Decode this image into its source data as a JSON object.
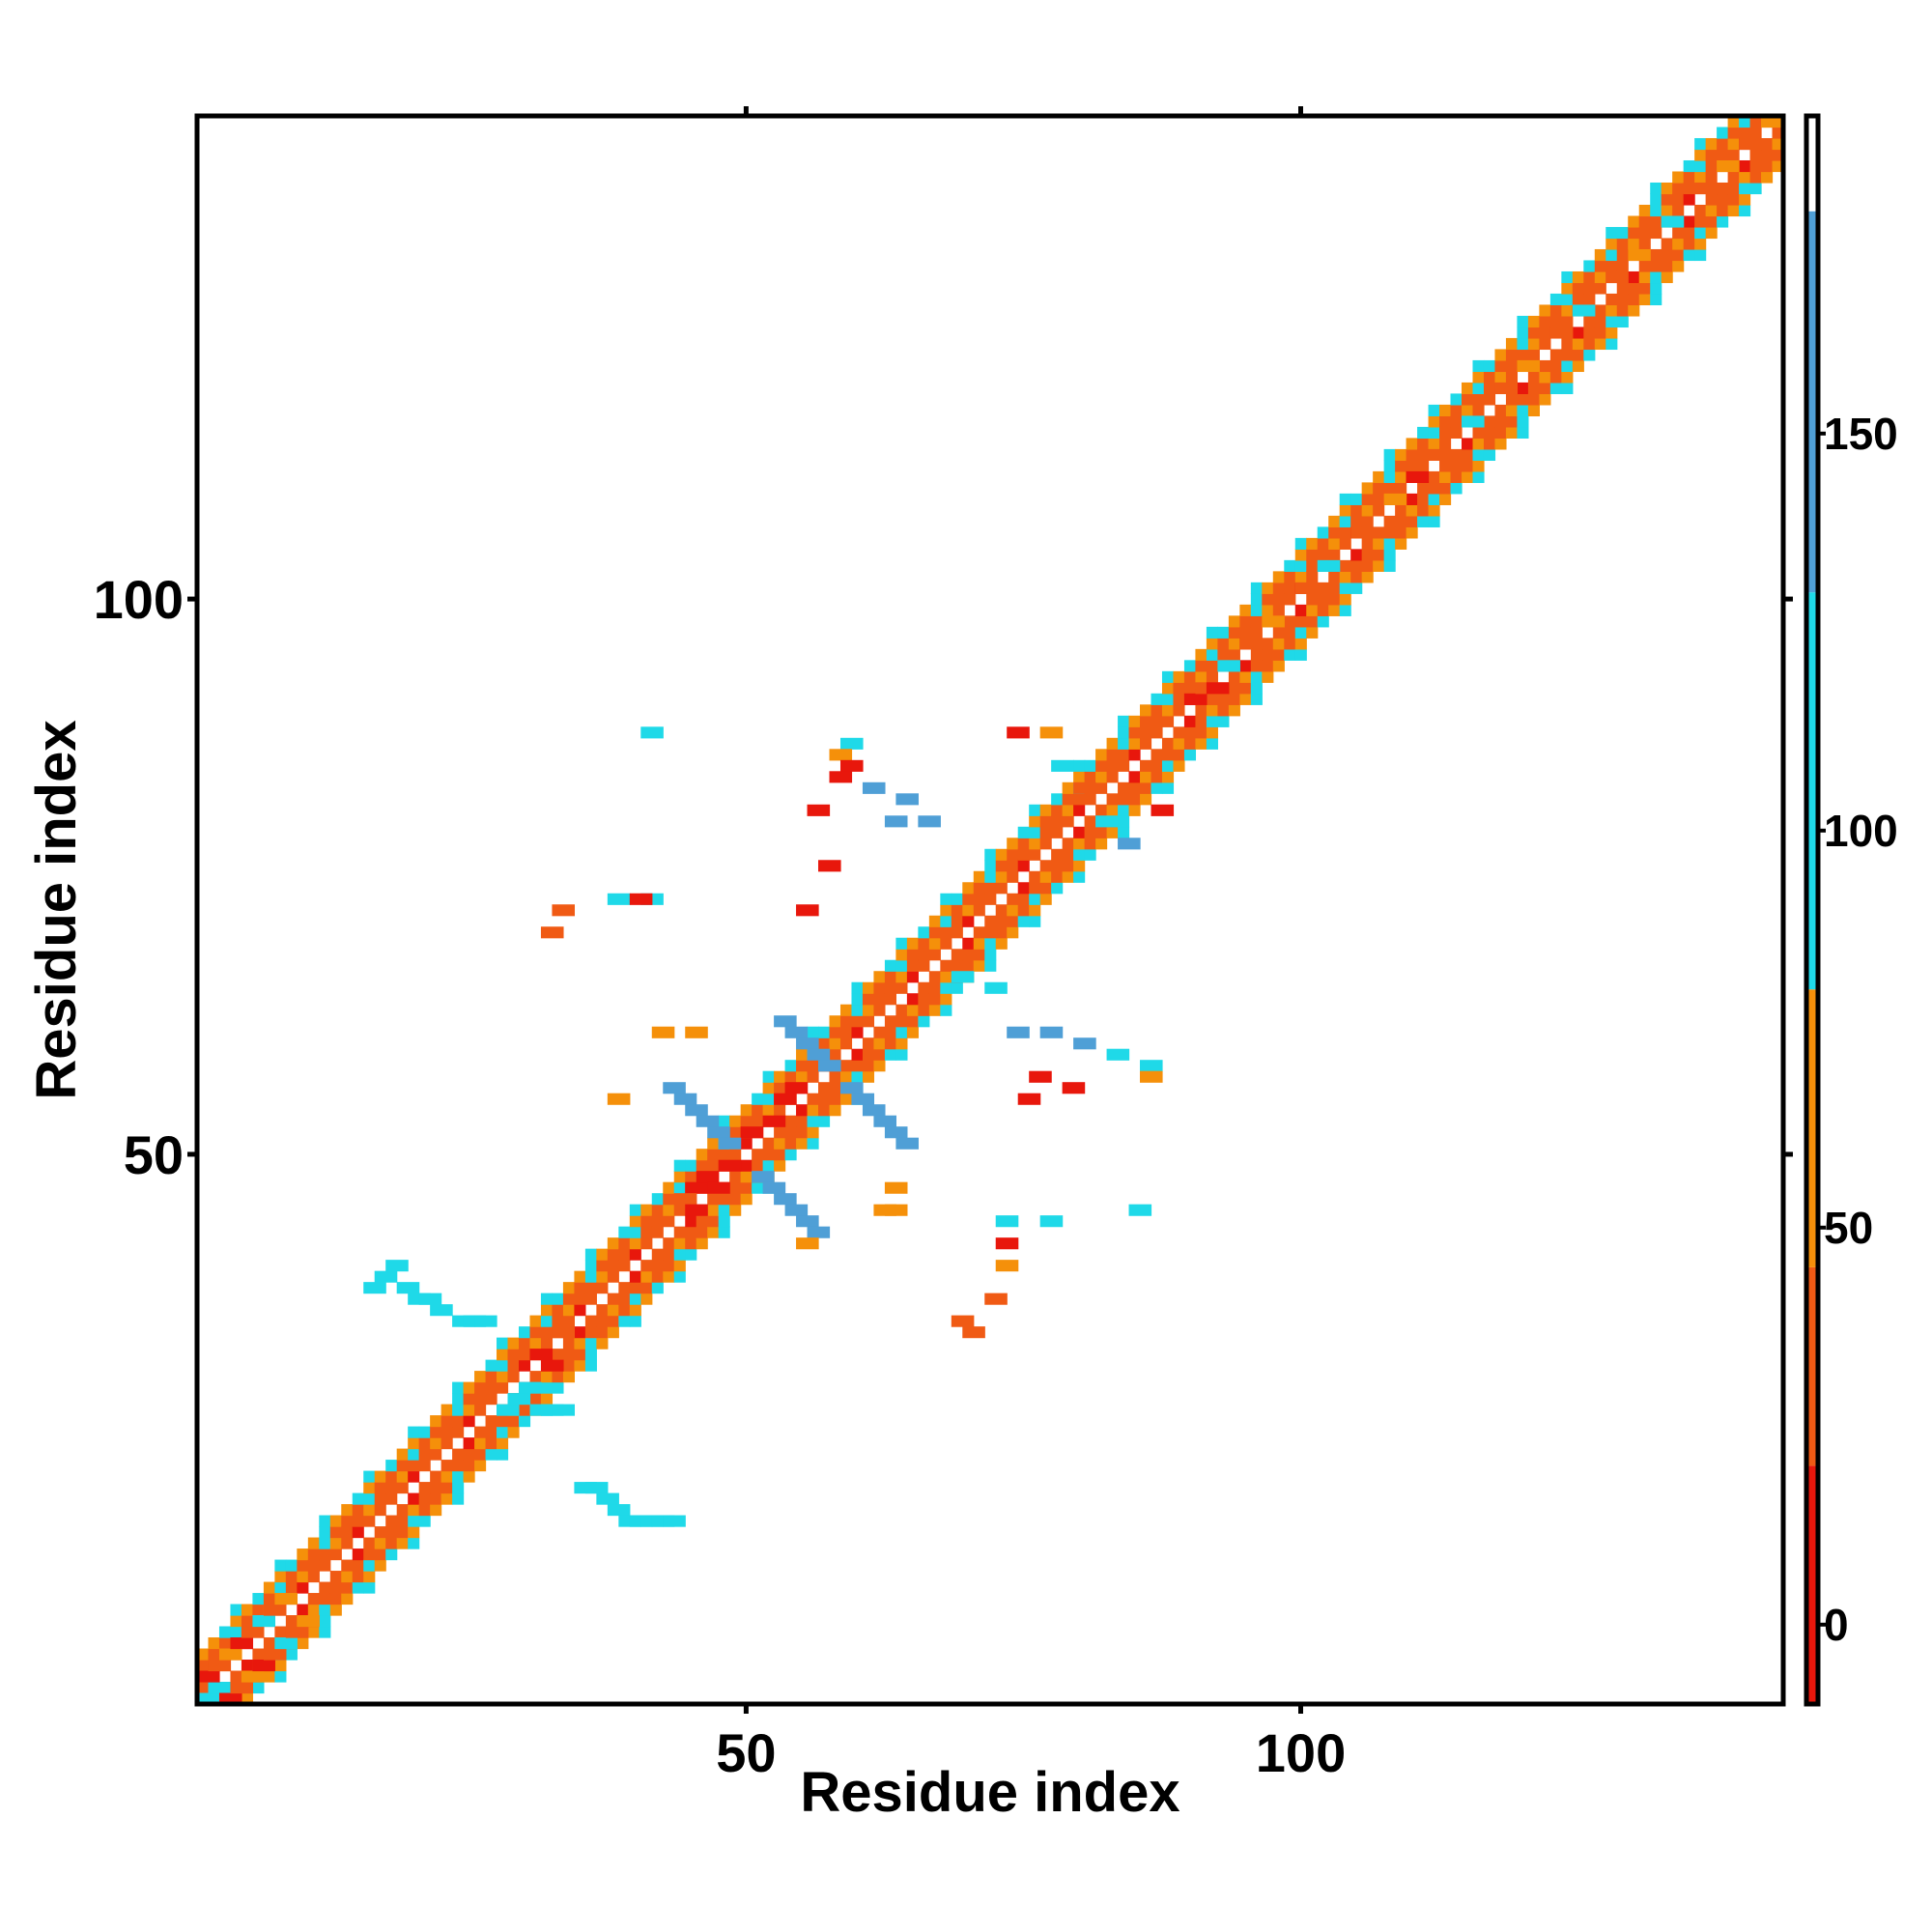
{
  "chart_data": {
    "type": "heatmap",
    "title": "",
    "xlabel": "Residue index",
    "ylabel": "Residue index",
    "xlim": [
      1,
      143
    ],
    "ylim": [
      1,
      143
    ],
    "x_ticks": [
      50,
      100
    ],
    "y_ticks": [
      50,
      100
    ],
    "colorbar": {
      "range": [
        -10,
        190
      ],
      "ticks": [
        0,
        50,
        100,
        150
      ],
      "bands": [
        {
          "from": -10,
          "to": 20,
          "color": "#e8170c"
        },
        {
          "from": 20,
          "to": 45,
          "color": "#f05a14"
        },
        {
          "from": 45,
          "to": 80,
          "color": "#f5900a"
        },
        {
          "from": 80,
          "to": 130,
          "color": "#1fd9e8"
        },
        {
          "from": 130,
          "to": 178,
          "color": "#4f9fd6"
        },
        {
          "from": 178,
          "to": 190,
          "color": "#ffffff"
        }
      ]
    },
    "grid": false,
    "legend": "colorbar-right",
    "description_of_pattern": [],
    "diagonal_band": {
      "residue_start": 1,
      "residue_end": 143
    },
    "cells": [
      [
        1,
        1,
        95
      ],
      [
        2,
        2,
        95
      ],
      [
        3,
        1,
        10
      ],
      [
        4,
        2,
        40
      ],
      [
        5,
        3,
        60
      ],
      [
        6,
        4,
        10
      ],
      [
        7,
        5,
        40
      ],
      [
        8,
        6,
        95
      ],
      [
        9,
        7,
        40
      ],
      [
        10,
        8,
        60
      ],
      [
        1,
        3,
        10
      ],
      [
        2,
        4,
        40
      ],
      [
        3,
        5,
        60
      ],
      [
        4,
        6,
        10
      ],
      [
        5,
        7,
        40
      ],
      [
        6,
        8,
        95
      ],
      [
        7,
        9,
        40
      ],
      [
        8,
        10,
        60
      ],
      [
        31,
        32,
        10
      ],
      [
        32,
        31,
        10
      ],
      [
        33,
        34,
        40
      ],
      [
        28,
        27,
        95
      ],
      [
        29,
        28,
        95
      ],
      [
        30,
        29,
        95
      ],
      [
        31,
        27,
        95
      ],
      [
        32,
        27,
        95
      ],
      [
        33,
        27,
        95
      ],
      [
        35,
        20,
        95
      ],
      [
        36,
        20,
        95
      ],
      [
        37,
        19,
        95
      ],
      [
        38,
        18,
        95
      ],
      [
        39,
        17,
        95
      ],
      [
        40,
        17,
        95
      ],
      [
        41,
        17,
        95
      ],
      [
        42,
        17,
        95
      ],
      [
        43,
        17,
        95
      ],
      [
        16,
        38,
        95
      ],
      [
        17,
        39,
        95
      ],
      [
        18,
        40,
        95
      ],
      [
        19,
        38,
        95
      ],
      [
        20,
        37,
        95
      ],
      [
        21,
        37,
        95
      ],
      [
        22,
        36,
        95
      ],
      [
        24,
        35,
        95
      ],
      [
        25,
        35,
        95
      ],
      [
        26,
        35,
        95
      ],
      [
        45,
        47,
        10
      ],
      [
        46,
        48,
        10
      ],
      [
        47,
        47,
        10
      ],
      [
        48,
        49,
        10
      ],
      [
        44,
        46,
        40
      ],
      [
        45,
        45,
        10
      ],
      [
        50,
        52,
        10
      ],
      [
        52,
        53,
        10
      ],
      [
        53,
        55,
        10
      ],
      [
        54,
        56,
        10
      ],
      [
        56,
        58,
        40
      ],
      [
        43,
        56,
        150
      ],
      [
        44,
        55,
        150
      ],
      [
        45,
        54,
        150
      ],
      [
        46,
        53,
        150
      ],
      [
        47,
        52,
        150
      ],
      [
        48,
        51,
        150
      ],
      [
        51,
        48,
        150
      ],
      [
        52,
        47,
        150
      ],
      [
        53,
        46,
        150
      ],
      [
        54,
        45,
        150
      ],
      [
        55,
        44,
        150
      ],
      [
        56,
        43,
        150
      ],
      [
        53,
        62,
        150
      ],
      [
        54,
        61,
        150
      ],
      [
        55,
        60,
        150
      ],
      [
        56,
        59,
        150
      ],
      [
        57,
        58,
        150
      ],
      [
        59,
        56,
        150
      ],
      [
        60,
        55,
        150
      ],
      [
        61,
        54,
        150
      ],
      [
        62,
        53,
        150
      ],
      [
        63,
        52,
        150
      ],
      [
        64,
        51,
        150
      ],
      [
        42,
        61,
        60
      ],
      [
        45,
        61,
        60
      ],
      [
        38,
        55,
        60
      ],
      [
        55,
        42,
        60
      ],
      [
        63,
        45,
        60
      ],
      [
        41,
        88,
        95
      ],
      [
        59,
        87,
        95
      ],
      [
        58,
        86,
        60
      ],
      [
        59,
        85,
        10
      ],
      [
        58,
        84,
        10
      ],
      [
        38,
        73,
        95
      ],
      [
        41,
        73,
        95
      ],
      [
        40,
        73,
        10
      ],
      [
        33,
        72,
        40
      ],
      [
        32,
        70,
        40
      ],
      [
        61,
        83,
        150
      ],
      [
        64,
        82,
        150
      ],
      [
        63,
        80,
        150
      ],
      [
        66,
        80,
        150
      ],
      [
        55,
        72,
        10
      ],
      [
        56,
        81,
        10
      ],
      [
        57,
        76,
        10
      ],
      [
        74,
        88,
        10
      ],
      [
        77,
        88,
        60
      ],
      [
        78,
        85,
        95
      ],
      [
        80,
        83,
        40
      ],
      [
        82,
        80,
        95
      ],
      [
        84,
        78,
        150
      ],
      [
        87,
        81,
        10
      ],
      [
        69,
        66,
        95
      ],
      [
        72,
        65,
        95
      ],
      [
        74,
        61,
        150
      ],
      [
        77,
        61,
        150
      ],
      [
        80,
        60,
        150
      ],
      [
        83,
        59,
        95
      ],
      [
        86,
        58,
        95
      ],
      [
        86,
        57,
        60
      ],
      [
        75,
        55,
        10
      ],
      [
        76,
        57,
        10
      ],
      [
        79,
        56,
        10
      ],
      [
        85,
        45,
        95
      ],
      [
        73,
        44,
        95
      ],
      [
        73,
        42,
        10
      ],
      [
        73,
        40,
        60
      ],
      [
        72,
        37,
        40
      ],
      [
        69,
        35,
        40
      ],
      [
        70,
        34,
        40
      ],
      [
        63,
        47,
        60
      ],
      [
        62,
        45,
        60
      ],
      [
        77,
        44,
        95
      ],
      [
        90,
        91,
        10
      ],
      [
        91,
        92,
        40
      ],
      [
        93,
        94,
        95
      ],
      [
        92,
        92,
        10
      ],
      [
        95,
        96,
        40
      ],
      [
        97,
        98,
        60
      ],
      [
        100,
        101,
        40
      ],
      [
        102,
        103,
        95
      ],
      [
        105,
        106,
        40
      ],
      [
        108,
        109,
        60
      ],
      [
        110,
        111,
        10
      ],
      [
        112,
        113,
        40
      ],
      [
        115,
        116,
        95
      ],
      [
        118,
        119,
        40
      ],
      [
        120,
        121,
        60
      ],
      [
        123,
        124,
        40
      ],
      [
        125,
        126,
        95
      ],
      [
        128,
        129,
        40
      ],
      [
        130,
        131,
        60
      ],
      [
        133,
        134,
        95
      ],
      [
        136,
        137,
        40
      ],
      [
        138,
        139,
        60
      ],
      [
        140,
        141,
        40
      ],
      [
        142,
        143,
        60
      ]
    ]
  }
}
